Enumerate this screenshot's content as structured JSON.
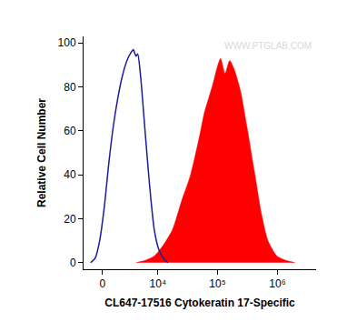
{
  "chart_data": {
    "type": "line",
    "x_label": "CL647-17516 Cytokeratin 17-Specific",
    "y_label": "Relative Cell Number",
    "annotations": [
      "WWW.PTGLAB.COM"
    ],
    "log": "x",
    "grid": false,
    "xlim": [
      -1900,
      4400000
    ],
    "xticks": [
      0,
      {
        "value": 10000,
        "label": "10⁴"
      },
      {
        "value": 100000,
        "label": "10⁵"
      },
      {
        "value": 1000000,
        "label": "10⁶"
      }
    ],
    "ylim": [
      -3,
      103
    ],
    "yticks": [
      0,
      20,
      40,
      60,
      80,
      100
    ],
    "series": [
      {
        "type": "line",
        "color": "#1c1c9c",
        "x": [
          -1130,
          -680,
          -253,
          169,
          595,
          1040,
          1517,
          2040,
          2630,
          3290,
          3600,
          4040,
          4370,
          4950,
          5970,
          7200,
          8670,
          10380,
          12390,
          14800
        ],
        "values": [
          0,
          2,
          10,
          25,
          45,
          62,
          75,
          85,
          92,
          96,
          97,
          94,
          95,
          85,
          60,
          35,
          15,
          6,
          2,
          0
        ]
      },
      {
        "type": "area",
        "color": "#ff0000",
        "x": [
          4040,
          5970,
          8670,
          12390,
          17700,
          25100,
          35600,
          50500,
          60100,
          71600,
          85100,
          101400,
          112700,
          133900,
          159500,
          190000,
          242700,
          309000,
          409000,
          542000,
          692000,
          979000,
          1390000,
          1968000
        ],
        "values": [
          0,
          1,
          3,
          8,
          15,
          28,
          40,
          58,
          68,
          75,
          82,
          90,
          93,
          86,
          92,
          88,
          78,
          62,
          42,
          22,
          10,
          3,
          1,
          0
        ]
      }
    ]
  }
}
